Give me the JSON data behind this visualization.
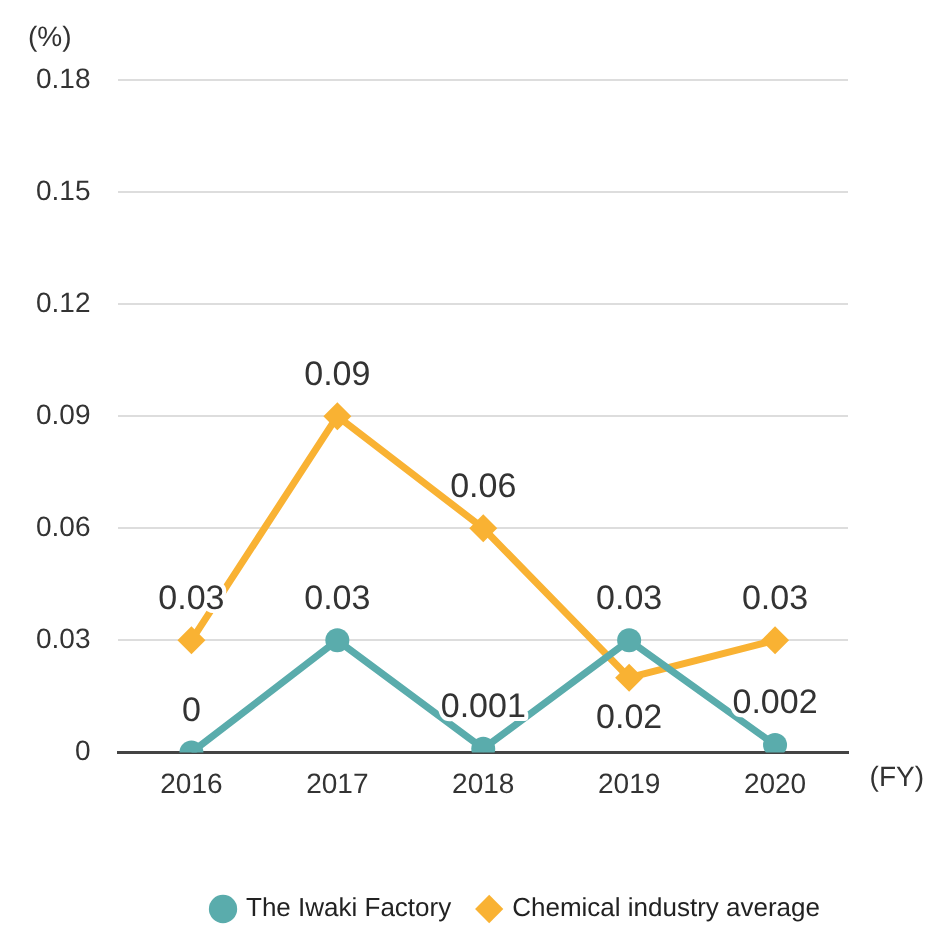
{
  "chart_data": {
    "type": "line",
    "xlabel": "(FY)",
    "ylabel": "(%)",
    "categories": [
      "2016",
      "2017",
      "2018",
      "2019",
      "2020"
    ],
    "series": [
      {
        "name": "The Iwaki Factory",
        "color": "#5aacac",
        "marker": "circle",
        "values": [
          0,
          0.03,
          0.001,
          0.03,
          0.002
        ]
      },
      {
        "name": "Chemical industry average",
        "color": "#f9b233",
        "marker": "diamond",
        "values": [
          0.03,
          0.09,
          0.06,
          0.02,
          0.03
        ]
      }
    ],
    "ylim": [
      0,
      0.18
    ],
    "yticks": [
      0,
      0.03,
      0.06,
      0.09,
      0.12,
      0.15,
      0.18
    ],
    "grid": "y",
    "legend": "bottom right",
    "data_labels": true
  }
}
